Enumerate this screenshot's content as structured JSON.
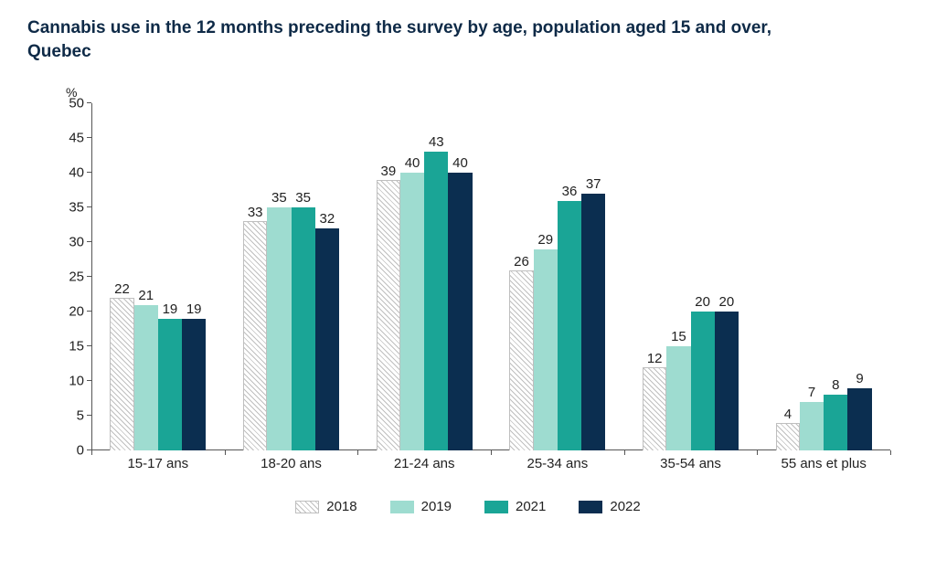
{
  "chart": {
    "type": "bar",
    "title": "Cannabis use in the 12 months preceding the survey by age, population aged 15 and over, Quebec",
    "title_color": "#0e2a47",
    "title_fontsize": 19,
    "y_unit": "%",
    "ylim": [
      0,
      50
    ],
    "ytick_step": 5,
    "background_color": "#ffffff",
    "axis_color": "#555555",
    "label_color": "#222222",
    "label_fontsize": 15,
    "bar_label_fontsize": 15,
    "bar_group_inner_padding_pct": 14,
    "categories": [
      "15-17 ans",
      "18-20 ans",
      "21-24 ans",
      "25-34 ans",
      "35-54 ans",
      "55 ans et plus"
    ],
    "series": [
      {
        "name": "2018",
        "pattern": "hatched",
        "color": "#bfbfbf",
        "hatch_color": "#bfbfbf",
        "values": [
          22,
          33,
          39,
          26,
          12,
          4
        ]
      },
      {
        "name": "2019",
        "pattern": "solid",
        "color": "#9edcd0",
        "values": [
          21,
          35,
          40,
          29,
          15,
          7
        ]
      },
      {
        "name": "2021",
        "pattern": "solid",
        "color": "#1aa596",
        "values": [
          19,
          35,
          43,
          36,
          20,
          8
        ]
      },
      {
        "name": "2022",
        "pattern": "solid",
        "color": "#0b2e50",
        "values": [
          19,
          32,
          40,
          37,
          20,
          9
        ]
      }
    ],
    "legend_swatch_width": 26,
    "legend_swatch_height": 14
  }
}
